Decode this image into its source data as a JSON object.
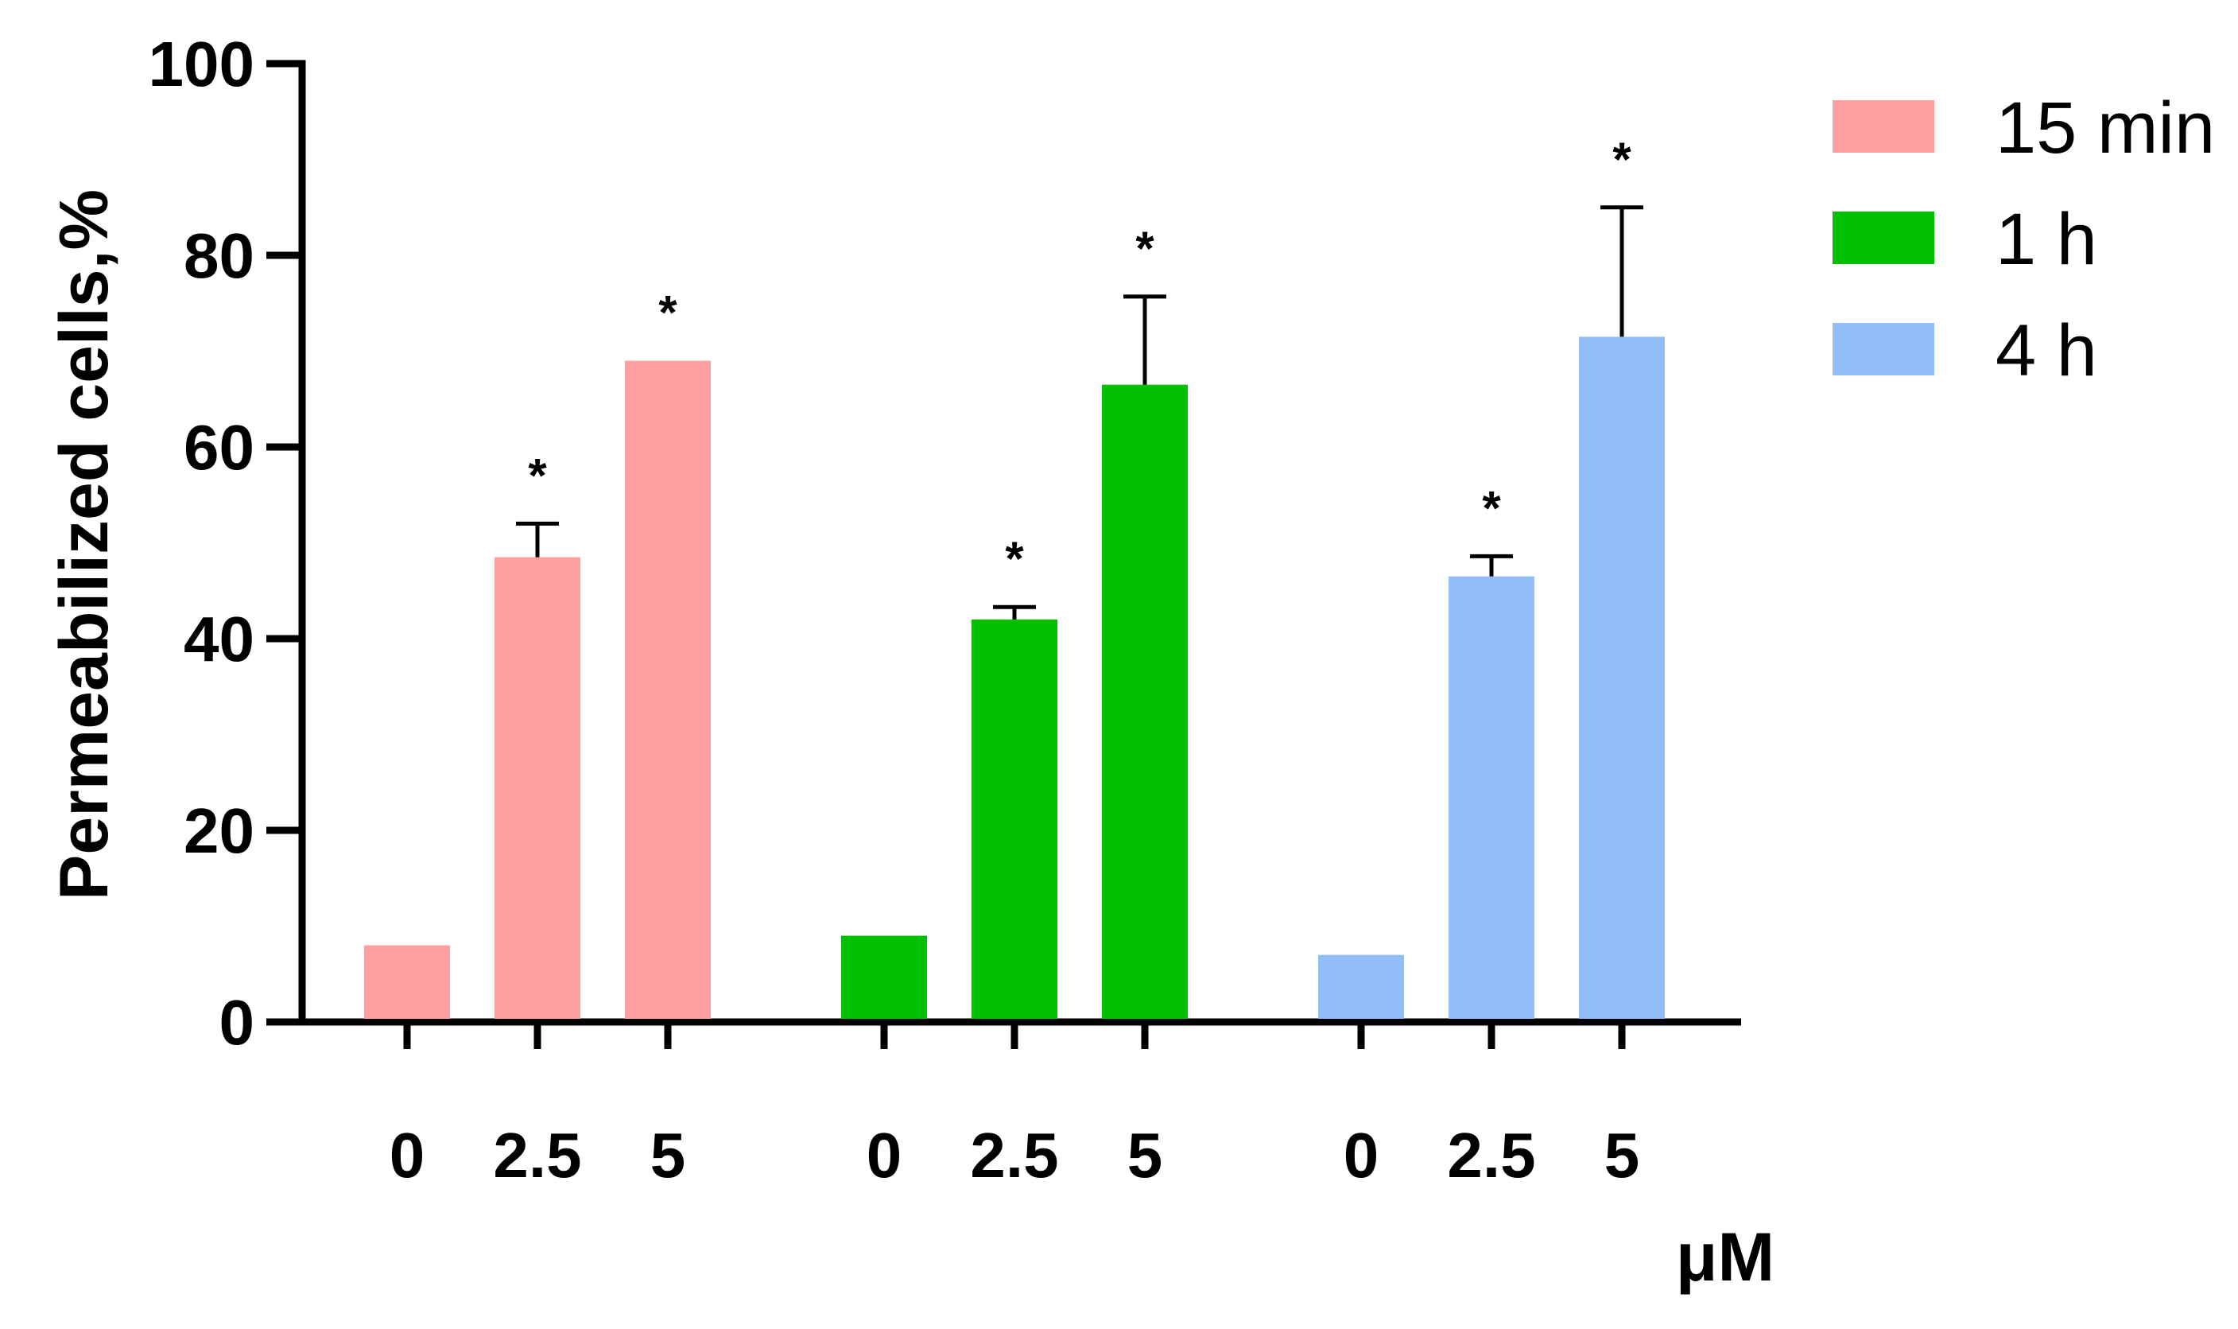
{
  "chart_data": {
    "type": "bar",
    "ylabel": "Permeabilized cells,%",
    "xunit": "μM",
    "ylim": [
      0,
      100
    ],
    "yticks": [
      0,
      20,
      40,
      60,
      80,
      100
    ],
    "grid": false,
    "legend_position": "top-right",
    "series": [
      {
        "name": "15 min",
        "color": "#FFA0A0",
        "categories": [
          "0",
          "2.5",
          "5"
        ],
        "values": [
          8,
          48.5,
          69
        ],
        "errors": [
          null,
          3.5,
          null
        ],
        "significance": [
          "",
          "*",
          "*"
        ]
      },
      {
        "name": "1 h",
        "color": "#00C000",
        "categories": [
          "0",
          "2.5",
          "5"
        ],
        "values": [
          9,
          42,
          66.5
        ],
        "errors": [
          null,
          1.3,
          9.2
        ],
        "significance": [
          "",
          "*",
          "*"
        ]
      },
      {
        "name": "4 h",
        "color": "#92BEF7",
        "categories": [
          "0",
          "2.5",
          "5"
        ],
        "values": [
          7,
          46.5,
          71.5
        ],
        "errors": [
          null,
          2.1,
          13.5
        ],
        "significance": [
          "",
          "*",
          "*"
        ]
      }
    ]
  }
}
